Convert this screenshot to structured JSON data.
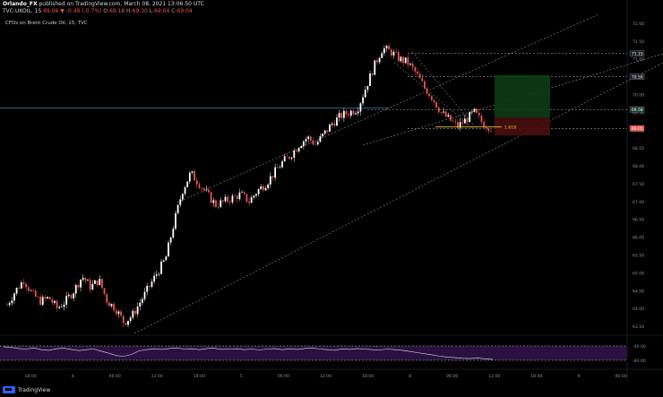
{
  "header": {
    "author": "Orlando_FX",
    "published": "published on TradingView.com, March 08, 2021 13:06:50 UTC",
    "symbol": "TVC:UKOIL, 15",
    "last": "69.06",
    "change_arrow": "▼",
    "change": "-0.49 (-0.7%)",
    "o_label": "O:",
    "o": "69.18",
    "h_label": "H:",
    "h": "69.30",
    "l_label": "L:",
    "l": "69.04",
    "c_label": "C:",
    "c": "69.04"
  },
  "chart_title": "CFDs on Brent Crude Oil, 15, TVC",
  "footer": {
    "brand": "TradingView"
  },
  "colors": {
    "background": "#000000",
    "up_candle": "#ffffff",
    "down_candle": "#ef5350",
    "fib_line": "#f4c430",
    "rsi_band": "#2a1140",
    "price_marker": "#26a69a"
  },
  "chart_data": {
    "type": "candlestick",
    "title": "CFDs on Brent Crude Oil, 15, TVC",
    "y_axis": {
      "ticks": [
        "72.00",
        "71.50",
        "71.00",
        "70.50",
        "70.00",
        "69.50",
        "69.00",
        "68.50",
        "68.00",
        "67.50",
        "67.00",
        "66.50",
        "66.00",
        "65.50",
        "65.00",
        "64.50",
        "64.00",
        "63.50"
      ],
      "range": [
        63.3,
        72.3
      ]
    },
    "x_axis": {
      "ticks": [
        "18:00",
        "4",
        "06:00",
        "12:00",
        "18:00",
        "5",
        "06:00",
        "12:00",
        "18:00",
        "8",
        "06:00",
        "12:00",
        "18:00",
        "9",
        "06:00"
      ]
    },
    "price_labels": [
      {
        "label": "71.15",
        "value": 71.15
      },
      {
        "label": "70.50",
        "value": 70.5
      },
      {
        "label": "69.58",
        "value": 69.58
      },
      {
        "label": "69.05",
        "value": 69.05
      }
    ],
    "fib_annotation": {
      "label": "1.618",
      "value": 69.09
    },
    "rsi": {
      "ticks": [
        "-40.00",
        "-80.00"
      ],
      "values": [
        70,
        68,
        64,
        62,
        66,
        60,
        58,
        63,
        65,
        61,
        57,
        60,
        62,
        55,
        48,
        40,
        38,
        44,
        56,
        60,
        63,
        61,
        64,
        66,
        62,
        63,
        60,
        64,
        65,
        61,
        62,
        63,
        60,
        62,
        59,
        62,
        64,
        60,
        63,
        61,
        64,
        66,
        62,
        60,
        58,
        63,
        61,
        64,
        62,
        60,
        59,
        62,
        60,
        58,
        54,
        50,
        46,
        42,
        38,
        35,
        33,
        31,
        30,
        32,
        29,
        27
      ]
    },
    "ohlc_path": [
      64.1,
      64.5,
      64.8,
      64.4,
      64.2,
      64.3,
      64.0,
      64.2,
      64.5,
      64.9,
      64.6,
      64.8,
      64.2,
      64.0,
      63.6,
      63.8,
      64.2,
      64.6,
      65.0,
      65.4,
      66.4,
      67.3,
      67.8,
      67.5,
      67.2,
      66.9,
      67.0,
      67.1,
      67.2,
      67.0,
      67.3,
      67.5,
      67.8,
      68.1,
      68.3,
      68.6,
      68.8,
      68.6,
      68.9,
      69.2,
      69.4,
      69.5,
      69.6,
      70.2,
      70.8,
      71.3,
      71.2,
      71.0,
      70.9,
      70.6,
      70.2,
      69.9,
      69.5,
      69.3,
      69.1,
      69.3,
      69.5,
      69.2,
      69.06
    ]
  }
}
